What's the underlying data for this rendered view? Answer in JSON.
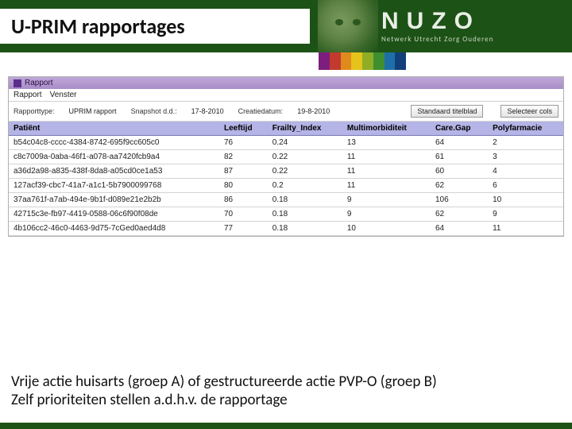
{
  "header": {
    "title": "U-PRIM rapportages",
    "logo_letters": "NUZO",
    "logo_tagline": "Netwerk Utrecht Zorg Ouderen",
    "bar_colors": [
      "#7d1e7e",
      "#c23a2e",
      "#e08a1e",
      "#e6c31a",
      "#8fae26",
      "#3f8f2e",
      "#1e6fa8",
      "#123f7a"
    ]
  },
  "window": {
    "title": "Rapport",
    "menu": {
      "item1": "Rapport",
      "item2": "Venster"
    },
    "meta": {
      "type_label": "Rapporttype:",
      "type_value": "UPRIM rapport",
      "snapshot_label": "Snapshot d.d.:",
      "snapshot_value": "17-8-2010",
      "created_label": "Creatiedatum:",
      "created_value": "19-8-2010"
    },
    "buttons": {
      "b1": "Standaard titelblad",
      "b2": "Selecteer cols"
    }
  },
  "table": {
    "header_bg": "#b4b4e6",
    "columns": [
      "Patiënt",
      "Leeftijd",
      "Frailty_Index",
      "Multimorbiditeit",
      "Care.Gap",
      "Polyfarmacie"
    ],
    "rows": [
      [
        "b54c04c8-cccc-4384-8742-695f9cc605c0",
        "76",
        "0.24",
        "13",
        "64",
        "2"
      ],
      [
        "c8c7009a-0aba-46f1-a078-aa7420fcb9a4",
        "82",
        "0.22",
        "11",
        "61",
        "3"
      ],
      [
        "a36d2a98-a835-438f-8da8-a05cd0ce1a53",
        "87",
        "0.22",
        "11",
        "60",
        "4"
      ],
      [
        "127acf39-cbc7-41a7-a1c1-5b7900099768",
        "80",
        "0.2",
        "11",
        "62",
        "6"
      ],
      [
        "37aa761f-a7ab-494e-9b1f-d089e21e2b2b",
        "86",
        "0.18",
        "9",
        "106",
        "10"
      ],
      [
        "42715c3e-fb97-4419-0588-06c6f90f08de",
        "70",
        "0.18",
        "9",
        "62",
        "9"
      ],
      [
        "4b106cc2-46c0-4463-9d75-7cGed0aed4d8",
        "77",
        "0.18",
        "10",
        "64",
        "11"
      ]
    ]
  },
  "caption": {
    "line1": "Vrije actie huisarts (groep A) of gestructureerde actie PVP-O (groep B)",
    "line2": "Zelf prioriteiten stellen a.d.h.v. de  rapportage"
  }
}
